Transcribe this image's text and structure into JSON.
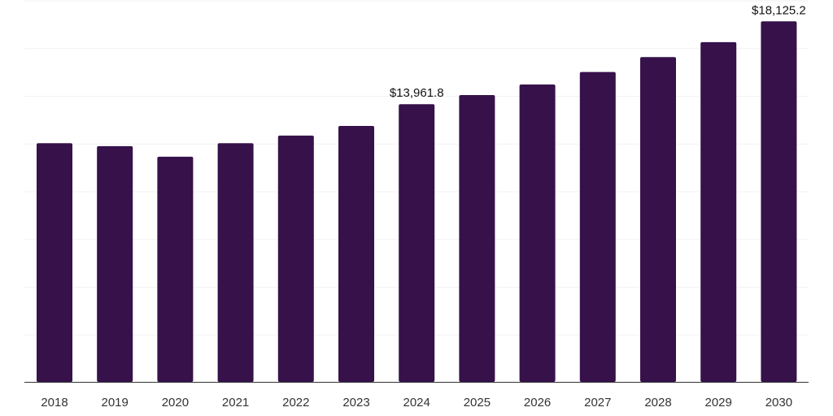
{
  "chart_data": {
    "type": "bar",
    "title": "",
    "xlabel": "",
    "ylabel": "",
    "categories": [
      "2018",
      "2019",
      "2020",
      "2021",
      "2022",
      "2023",
      "2024",
      "2025",
      "2026",
      "2027",
      "2028",
      "2029",
      "2030"
    ],
    "values": [
      12000,
      11850,
      11320,
      12000,
      12380,
      12870,
      13961.8,
      14420,
      14950,
      15580,
      16330,
      17080,
      18125.2
    ],
    "data_labels": [
      {
        "category": "2024",
        "text": "$13,961.8"
      },
      {
        "category": "2030",
        "text": "$18,125.2"
      }
    ],
    "ylim": [
      0,
      19200
    ],
    "grid": true,
    "y_tick_labels_shown": false,
    "legend": "none",
    "colors": {
      "bar": "#36114a",
      "gridline": "#f2f2f2",
      "axis": "#333333"
    }
  }
}
